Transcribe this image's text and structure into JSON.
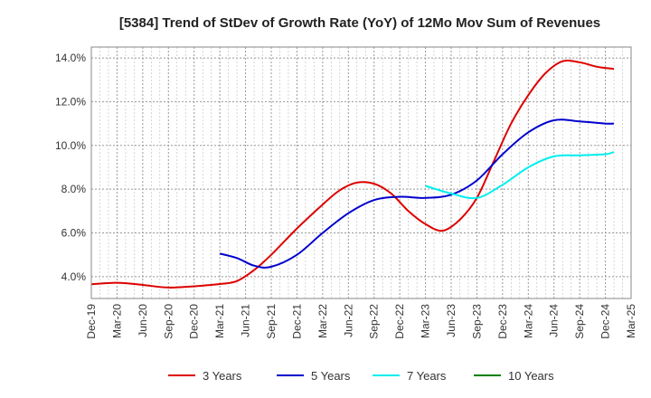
{
  "chart_data": {
    "type": "line",
    "title": "[5384]  Trend of StDev of Growth Rate (YoY) of 12Mo Mov Sum of Revenues",
    "xlabel": "",
    "ylabel": "",
    "ylim": [
      3.0,
      14.5
    ],
    "yticks": [
      4.0,
      6.0,
      8.0,
      10.0,
      12.0,
      14.0
    ],
    "ytick_labels": [
      "4.0%",
      "6.0%",
      "8.0%",
      "10.0%",
      "12.0%",
      "14.0%"
    ],
    "xticks": [
      "Dec-19",
      "Mar-20",
      "Jun-20",
      "Sep-20",
      "Dec-20",
      "Mar-21",
      "Jun-21",
      "Sep-21",
      "Dec-21",
      "Mar-22",
      "Jun-22",
      "Sep-22",
      "Dec-22",
      "Mar-23",
      "Jun-23",
      "Sep-23",
      "Dec-23",
      "Mar-24",
      "Jun-24",
      "Sep-24",
      "Dec-24",
      "Mar-25"
    ],
    "x_unit": "months since Dec-19",
    "grid": true,
    "legend_position": "bottom",
    "series": [
      {
        "name": "3 Years",
        "color": "#dd0000",
        "x": [
          0,
          3,
          6,
          9,
          12,
          15,
          17,
          19,
          21,
          24,
          27,
          29,
          31,
          33,
          35,
          37,
          39,
          41,
          43,
          45,
          47,
          49,
          51,
          53,
          55,
          57,
          59,
          61
        ],
        "values": [
          3.65,
          3.72,
          3.62,
          3.5,
          3.56,
          3.66,
          3.8,
          4.3,
          5.0,
          6.2,
          7.3,
          7.95,
          8.3,
          8.25,
          7.8,
          7.0,
          6.4,
          6.1,
          6.6,
          7.6,
          9.3,
          11.0,
          12.3,
          13.3,
          13.85,
          13.8,
          13.6,
          13.5
        ]
      },
      {
        "name": "5 Years",
        "color": "#0000cc",
        "x": [
          15,
          17,
          19,
          21,
          24,
          27,
          30,
          33,
          36,
          39,
          42,
          45,
          48,
          51,
          54,
          57,
          60,
          61
        ],
        "values": [
          5.05,
          4.85,
          4.5,
          4.45,
          5.0,
          6.0,
          6.9,
          7.5,
          7.65,
          7.6,
          7.75,
          8.4,
          9.6,
          10.6,
          11.15,
          11.1,
          11.0,
          11.0
        ]
      },
      {
        "name": "7 Years",
        "color": "#00eeee",
        "x": [
          39,
          42,
          45,
          48,
          51,
          54,
          57,
          60,
          61
        ],
        "values": [
          8.15,
          7.8,
          7.6,
          8.2,
          9.0,
          9.5,
          9.55,
          9.6,
          9.7
        ]
      },
      {
        "name": "10 Years",
        "color": "#008000",
        "x": [],
        "values": []
      }
    ]
  }
}
